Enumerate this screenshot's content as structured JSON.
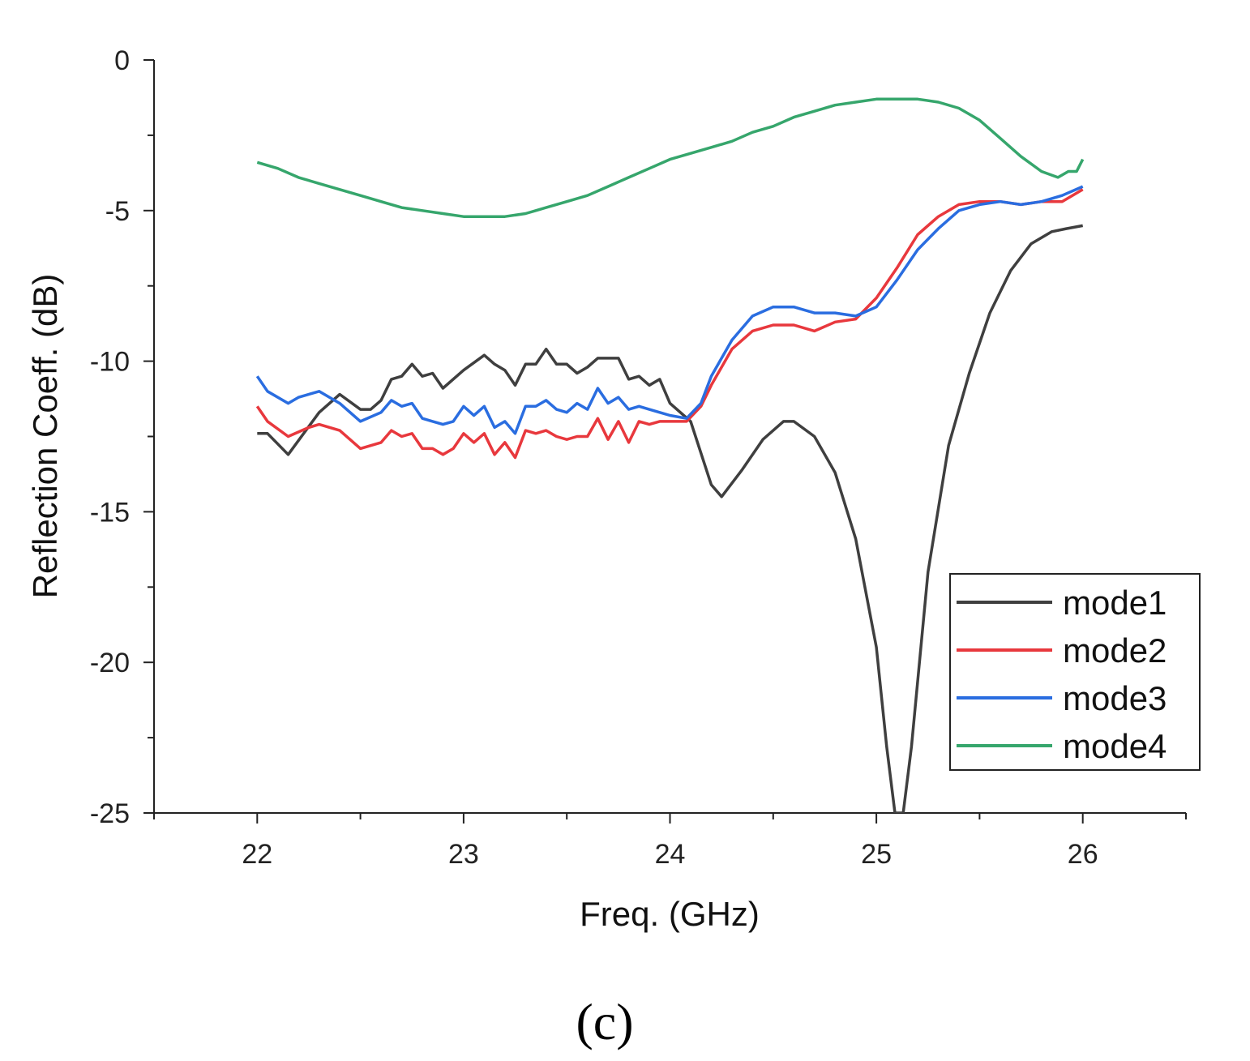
{
  "chart_data": {
    "type": "line",
    "title": "",
    "xlabel": "Freq. (GHz)",
    "ylabel": "Reflection Coeff. (dB)",
    "xlim": [
      21.5,
      26.5
    ],
    "ylim": [
      -25,
      0
    ],
    "xticks": [
      22,
      23,
      24,
      25,
      26
    ],
    "yticks": [
      0,
      -5,
      -10,
      -15,
      -20,
      -25
    ],
    "xtick_labels": [
      "22",
      "23",
      "24",
      "25",
      "26"
    ],
    "ytick_labels": [
      "0",
      "-5",
      "-10",
      "-15",
      "-20",
      "-25"
    ],
    "legend_position": "bottom-right",
    "panel_label": "(c)",
    "series": [
      {
        "name": "mode1",
        "color": "#3f3f3f",
        "x": [
          22.0,
          22.05,
          22.15,
          22.3,
          22.4,
          22.5,
          22.55,
          22.6,
          22.65,
          22.7,
          22.75,
          22.8,
          22.85,
          22.9,
          23.0,
          23.1,
          23.15,
          23.2,
          23.25,
          23.3,
          23.35,
          23.4,
          23.45,
          23.5,
          23.55,
          23.6,
          23.65,
          23.7,
          23.75,
          23.8,
          23.85,
          23.9,
          23.95,
          24.0,
          24.1,
          24.2,
          24.25,
          24.35,
          24.45,
          24.55,
          24.6,
          24.7,
          24.8,
          24.9,
          25.0,
          25.05,
          25.09,
          25.13,
          25.17,
          25.25,
          25.35,
          25.45,
          25.55,
          25.65,
          25.75,
          25.85,
          25.92,
          26.0
        ],
        "y": [
          -12.4,
          -12.4,
          -13.1,
          -11.7,
          -11.1,
          -11.6,
          -11.6,
          -11.3,
          -10.6,
          -10.5,
          -10.1,
          -10.5,
          -10.4,
          -10.9,
          -10.3,
          -9.8,
          -10.1,
          -10.3,
          -10.8,
          -10.1,
          -10.1,
          -9.6,
          -10.1,
          -10.1,
          -10.4,
          -10.2,
          -9.9,
          -9.9,
          -9.9,
          -10.6,
          -10.5,
          -10.8,
          -10.6,
          -11.4,
          -12.0,
          -14.1,
          -14.5,
          -13.6,
          -12.6,
          -12.0,
          -12.0,
          -12.5,
          -13.7,
          -15.9,
          -19.5,
          -22.8,
          -25.0,
          -25.0,
          -22.8,
          -17.0,
          -12.8,
          -10.4,
          -8.4,
          -7.0,
          -6.1,
          -5.7,
          -5.6,
          -5.5
        ]
      },
      {
        "name": "mode2",
        "color": "#e8383d",
        "x": [
          22.0,
          22.05,
          22.15,
          22.25,
          22.3,
          22.4,
          22.5,
          22.6,
          22.65,
          22.7,
          22.75,
          22.8,
          22.85,
          22.9,
          22.95,
          23.0,
          23.05,
          23.1,
          23.15,
          23.2,
          23.25,
          23.3,
          23.35,
          23.4,
          23.45,
          23.5,
          23.55,
          23.6,
          23.65,
          23.7,
          23.75,
          23.8,
          23.85,
          23.9,
          23.95,
          24.0,
          24.08,
          24.15,
          24.2,
          24.3,
          24.4,
          24.5,
          24.6,
          24.7,
          24.8,
          24.9,
          25.0,
          25.1,
          25.2,
          25.3,
          25.4,
          25.5,
          25.6,
          25.7,
          25.8,
          25.9,
          26.0
        ],
        "y": [
          -11.5,
          -12.0,
          -12.5,
          -12.2,
          -12.1,
          -12.3,
          -12.9,
          -12.7,
          -12.3,
          -12.5,
          -12.4,
          -12.9,
          -12.9,
          -13.1,
          -12.9,
          -12.4,
          -12.7,
          -12.4,
          -13.1,
          -12.7,
          -13.2,
          -12.3,
          -12.4,
          -12.3,
          -12.5,
          -12.6,
          -12.5,
          -12.5,
          -11.9,
          -12.6,
          -12.0,
          -12.7,
          -12.0,
          -12.1,
          -12.0,
          -12.0,
          -12.0,
          -11.5,
          -10.8,
          -9.6,
          -9.0,
          -8.8,
          -8.8,
          -9.0,
          -8.7,
          -8.6,
          -7.9,
          -6.9,
          -5.8,
          -5.2,
          -4.8,
          -4.7,
          -4.7,
          -4.8,
          -4.7,
          -4.7,
          -4.3
        ]
      },
      {
        "name": "mode3",
        "color": "#2a6de0",
        "x": [
          22.0,
          22.05,
          22.15,
          22.2,
          22.3,
          22.4,
          22.5,
          22.6,
          22.65,
          22.7,
          22.75,
          22.8,
          22.85,
          22.9,
          22.95,
          23.0,
          23.05,
          23.1,
          23.15,
          23.2,
          23.25,
          23.3,
          23.35,
          23.4,
          23.45,
          23.5,
          23.55,
          23.6,
          23.65,
          23.7,
          23.75,
          23.8,
          23.85,
          23.9,
          23.95,
          24.0,
          24.08,
          24.15,
          24.2,
          24.3,
          24.4,
          24.5,
          24.6,
          24.7,
          24.8,
          24.9,
          25.0,
          25.1,
          25.2,
          25.3,
          25.4,
          25.5,
          25.6,
          25.7,
          25.8,
          25.9,
          26.0
        ],
        "y": [
          -10.5,
          -11.0,
          -11.4,
          -11.2,
          -11.0,
          -11.4,
          -12.0,
          -11.7,
          -11.3,
          -11.5,
          -11.4,
          -11.9,
          -12.0,
          -12.1,
          -12.0,
          -11.5,
          -11.8,
          -11.5,
          -12.2,
          -12.0,
          -12.4,
          -11.5,
          -11.5,
          -11.3,
          -11.6,
          -11.7,
          -11.4,
          -11.6,
          -10.9,
          -11.4,
          -11.2,
          -11.6,
          -11.5,
          -11.6,
          -11.7,
          -11.8,
          -11.9,
          -11.4,
          -10.5,
          -9.3,
          -8.5,
          -8.2,
          -8.2,
          -8.4,
          -8.4,
          -8.5,
          -8.2,
          -7.3,
          -6.3,
          -5.6,
          -5.0,
          -4.8,
          -4.7,
          -4.8,
          -4.7,
          -4.5,
          -4.2
        ]
      },
      {
        "name": "mode4",
        "color": "#36a66c",
        "x": [
          22.0,
          22.1,
          22.2,
          22.3,
          22.4,
          22.5,
          22.6,
          22.7,
          22.8,
          22.9,
          23.0,
          23.05,
          23.1,
          23.2,
          23.3,
          23.35,
          23.4,
          23.5,
          23.6,
          23.7,
          23.8,
          23.9,
          24.0,
          24.1,
          24.2,
          24.3,
          24.4,
          24.5,
          24.6,
          24.7,
          24.8,
          24.9,
          25.0,
          25.1,
          25.2,
          25.3,
          25.4,
          25.45,
          25.5,
          25.6,
          25.7,
          25.8,
          25.88,
          25.93,
          25.97,
          26.0
        ],
        "y": [
          -3.4,
          -3.6,
          -3.9,
          -4.1,
          -4.3,
          -4.5,
          -4.7,
          -4.9,
          -5.0,
          -5.1,
          -5.2,
          -5.2,
          -5.2,
          -5.2,
          -5.1,
          -5.0,
          -4.9,
          -4.7,
          -4.5,
          -4.2,
          -3.9,
          -3.6,
          -3.3,
          -3.1,
          -2.9,
          -2.7,
          -2.4,
          -2.2,
          -1.9,
          -1.7,
          -1.5,
          -1.4,
          -1.3,
          -1.3,
          -1.3,
          -1.4,
          -1.6,
          -1.8,
          -2.0,
          -2.6,
          -3.2,
          -3.7,
          -3.9,
          -3.7,
          -3.7,
          -3.3
        ]
      }
    ]
  }
}
